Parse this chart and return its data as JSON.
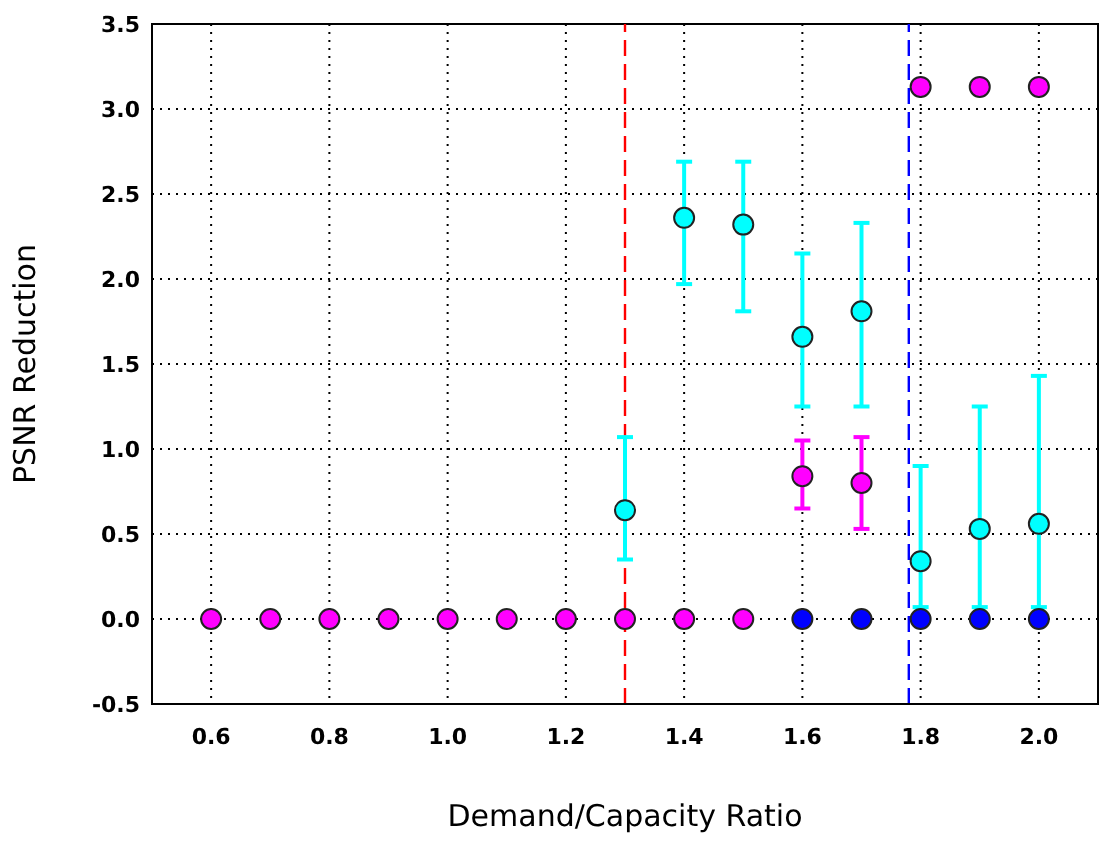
{
  "chart_data": {
    "type": "scatter",
    "xlabel": "Demand/Capacity Ratio",
    "ylabel": "PSNR Reduction",
    "x": [
      0.6,
      0.7,
      0.8,
      0.9,
      1.0,
      1.1,
      1.2,
      1.3,
      1.4,
      1.5,
      1.6,
      1.7,
      1.8,
      1.9,
      2.0
    ],
    "series": [
      {
        "color": "#00ffff",
        "values": [
          null,
          null,
          null,
          null,
          null,
          null,
          null,
          0.64,
          2.36,
          2.32,
          1.66,
          1.81,
          0.34,
          0.53,
          0.56
        ],
        "errors": [
          null,
          null,
          null,
          null,
          null,
          null,
          null,
          [
            0.35,
            1.07
          ],
          [
            1.97,
            2.69
          ],
          [
            1.81,
            2.69
          ],
          [
            1.25,
            2.15
          ],
          [
            1.25,
            2.33
          ],
          [
            0.07,
            0.9
          ],
          [
            0.07,
            1.25
          ],
          [
            0.07,
            1.43
          ]
        ]
      },
      {
        "color": "#ff00ff",
        "values": [
          0,
          0,
          0,
          0,
          0,
          0,
          0,
          0,
          0,
          0,
          0.84,
          0.8,
          3.13,
          3.13,
          3.13
        ],
        "errors": [
          null,
          null,
          null,
          null,
          null,
          null,
          null,
          null,
          null,
          null,
          [
            0.65,
            1.05
          ],
          [
            0.53,
            1.07
          ],
          null,
          null,
          null
        ]
      },
      {
        "color": "#0000ff",
        "values": [
          null,
          null,
          null,
          null,
          null,
          null,
          null,
          null,
          null,
          null,
          0,
          0,
          0,
          0,
          0
        ]
      }
    ],
    "xlim": [
      0.5,
      2.1
    ],
    "xticks": [
      {
        "value": 0.6,
        "label": "0.6"
      },
      {
        "value": 0.8,
        "label": "0.8"
      },
      {
        "value": 1.0,
        "label": "1.0"
      },
      {
        "value": 1.2,
        "label": "1.2"
      },
      {
        "value": 1.4,
        "label": "1.4"
      },
      {
        "value": 1.6,
        "label": "1.6"
      },
      {
        "value": 1.8,
        "label": "1.8"
      },
      {
        "value": 2.0,
        "label": "2.0"
      }
    ],
    "ylim": [
      -0.5,
      3.5
    ],
    "yticks": [
      {
        "value": -0.5,
        "label": "-0.5"
      },
      {
        "value": 0,
        "label": "0.0"
      },
      {
        "value": 0.5,
        "label": "0.5"
      },
      {
        "value": 1.0,
        "label": "1.0"
      },
      {
        "value": 1.5,
        "label": "1.5"
      },
      {
        "value": 2.0,
        "label": "2.0"
      },
      {
        "value": 2.5,
        "label": "2.5"
      },
      {
        "value": 3.0,
        "label": "3.0"
      },
      {
        "value": 3.5,
        "label": "3.5"
      }
    ],
    "ref_lines": [
      {
        "axis": "x",
        "value": 1.3,
        "color": "#ff0000",
        "line_style": "dashed"
      },
      {
        "axis": "x",
        "value": 1.78,
        "color": "#0000ff",
        "line_style": "dashed"
      }
    ],
    "grid": true,
    "marker": "circle"
  }
}
